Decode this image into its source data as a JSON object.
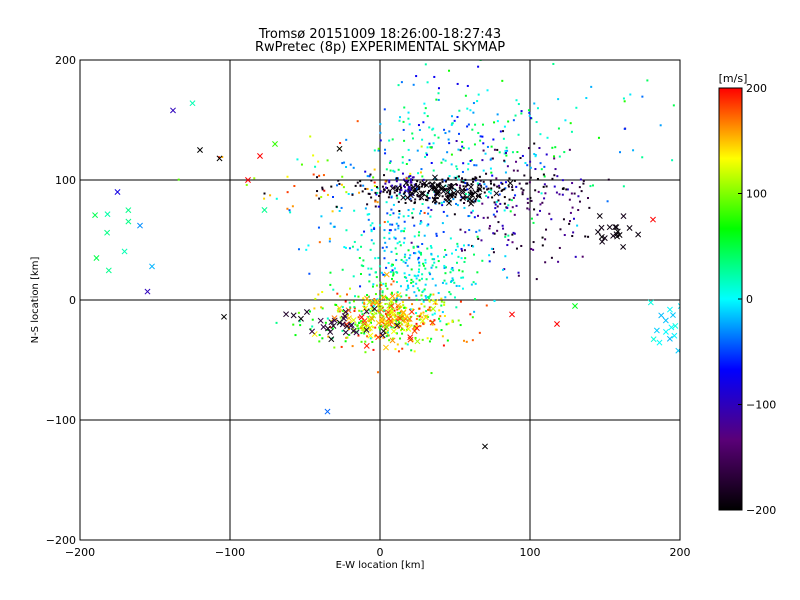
{
  "chart_data": {
    "type": "scatter",
    "title": "Tromsø 20151009 18:26:00-18:27:43",
    "subtitle": "RwPretec (8p) EXPERIMENTAL SKYMAP",
    "xlabel": "E-W location [km]",
    "ylabel": "N-S location [km]",
    "xlim": [
      -200,
      200
    ],
    "ylim": [
      -200,
      200
    ],
    "xticks": [
      "−200",
      "−100",
      "0",
      "100",
      "200"
    ],
    "yticks": [
      "−200",
      "−100",
      "0",
      "100",
      "200"
    ],
    "grid_lines": [
      -100,
      0,
      100
    ],
    "colorbar": {
      "label": "[m/s]",
      "range": [
        -200,
        200
      ],
      "ticks": [
        "200",
        "100",
        "0",
        "−100",
        "−200"
      ],
      "colormap": [
        "#000000",
        "#5a0078",
        "#0000ff",
        "#00ffff",
        "#00ff00",
        "#ffff00",
        "#ff0000"
      ]
    },
    "clusters": [
      {
        "type": "dot",
        "cx": 45,
        "cy": 115,
        "sx": 35,
        "sy": 35,
        "n": 260,
        "vmin": -80,
        "vmax": 60
      },
      {
        "type": "dot",
        "cx": 95,
        "cy": 75,
        "sx": 28,
        "sy": 30,
        "n": 160,
        "vmin": -200,
        "vmax": -90
      },
      {
        "type": "dot",
        "cx": 25,
        "cy": 20,
        "sx": 25,
        "sy": 18,
        "n": 200,
        "vmin": -20,
        "vmax": 60
      },
      {
        "type": "dot",
        "cx": 10,
        "cy": 60,
        "sx": 25,
        "sy": 25,
        "n": 150,
        "vmin": -60,
        "vmax": 20
      },
      {
        "type": "dot",
        "cx": 10,
        "cy": -15,
        "sx": 22,
        "sy": 12,
        "n": 240,
        "vmin": 60,
        "vmax": 200
      },
      {
        "type": "dot",
        "cx": 40,
        "cy": 92,
        "sx": 35,
        "sy": 6,
        "n": 200,
        "vmin": -200,
        "vmax": -180
      },
      {
        "type": "dot",
        "cx": 15,
        "cy": 96,
        "sx": 6,
        "sy": 4,
        "n": 40,
        "vmin": -110,
        "vmax": -90
      },
      {
        "type": "dot",
        "cx": -40,
        "cy": 100,
        "sx": 35,
        "sy": 20,
        "n": 50,
        "vmin": 80,
        "vmax": 200
      },
      {
        "type": "dot",
        "cx": -15,
        "cy": -15,
        "sx": 20,
        "sy": 12,
        "n": 80,
        "vmin": 0,
        "vmax": 120
      },
      {
        "type": "dot",
        "cx": 120,
        "cy": 150,
        "sx": 50,
        "sy": 30,
        "n": 60,
        "vmin": -60,
        "vmax": 80
      },
      {
        "type": "cross",
        "cx": 40,
        "cy": 90,
        "sx": 15,
        "sy": 5,
        "n": 60,
        "vmin": -200,
        "vmax": -190
      },
      {
        "type": "cross",
        "cx": 5,
        "cy": -15,
        "sx": 15,
        "sy": 10,
        "n": 90,
        "vmin": 100,
        "vmax": 200
      },
      {
        "type": "cross",
        "cx": -30,
        "cy": -20,
        "sx": 15,
        "sy": 8,
        "n": 30,
        "vmin": -200,
        "vmax": -160
      },
      {
        "type": "cross",
        "cx": 155,
        "cy": 55,
        "sx": 10,
        "sy": 6,
        "n": 18,
        "vmin": -200,
        "vmax": -185
      },
      {
        "type": "cross",
        "cx": 190,
        "cy": -20,
        "sx": 8,
        "sy": 12,
        "n": 16,
        "vmin": -20,
        "vmax": 10
      },
      {
        "type": "cross",
        "cx": -172,
        "cy": 45,
        "sx": 8,
        "sy": 20,
        "n": 8,
        "vmin": 20,
        "vmax": 50
      }
    ],
    "points": [
      {
        "x": -138,
        "y": 158,
        "v": -100,
        "m": "cross"
      },
      {
        "x": -125,
        "y": 164,
        "v": 20,
        "m": "cross"
      },
      {
        "x": -120,
        "y": 125,
        "v": -200,
        "m": "cross"
      },
      {
        "x": -107,
        "y": 118,
        "v": -200,
        "m": "cross"
      },
      {
        "x": -175,
        "y": 90,
        "v": -80,
        "m": "cross"
      },
      {
        "x": -155,
        "y": 7,
        "v": -100,
        "m": "cross"
      },
      {
        "x": -104,
        "y": -14,
        "v": -200,
        "m": "cross"
      },
      {
        "x": -35,
        "y": -93,
        "v": -40,
        "m": "cross"
      },
      {
        "x": 70,
        "y": -122,
        "v": -200,
        "m": "cross"
      },
      {
        "x": -88,
        "y": 100,
        "v": 200,
        "m": "cross"
      },
      {
        "x": -77,
        "y": 75,
        "v": 30,
        "m": "cross"
      },
      {
        "x": -70,
        "y": 130,
        "v": 80,
        "m": "cross"
      },
      {
        "x": -80,
        "y": 120,
        "v": 200,
        "m": "cross"
      },
      {
        "x": -27,
        "y": 126,
        "v": -200,
        "m": "cross"
      },
      {
        "x": 182,
        "y": 67,
        "v": 200,
        "m": "cross"
      },
      {
        "x": 130,
        "y": -5,
        "v": 60,
        "m": "cross"
      },
      {
        "x": 118,
        "y": -20,
        "v": 200,
        "m": "cross"
      },
      {
        "x": 88,
        "y": -12,
        "v": 200,
        "m": "cross"
      },
      {
        "x": -160,
        "y": 62,
        "v": -30,
        "m": "cross"
      },
      {
        "x": -152,
        "y": 28,
        "v": -20,
        "m": "cross"
      }
    ]
  }
}
